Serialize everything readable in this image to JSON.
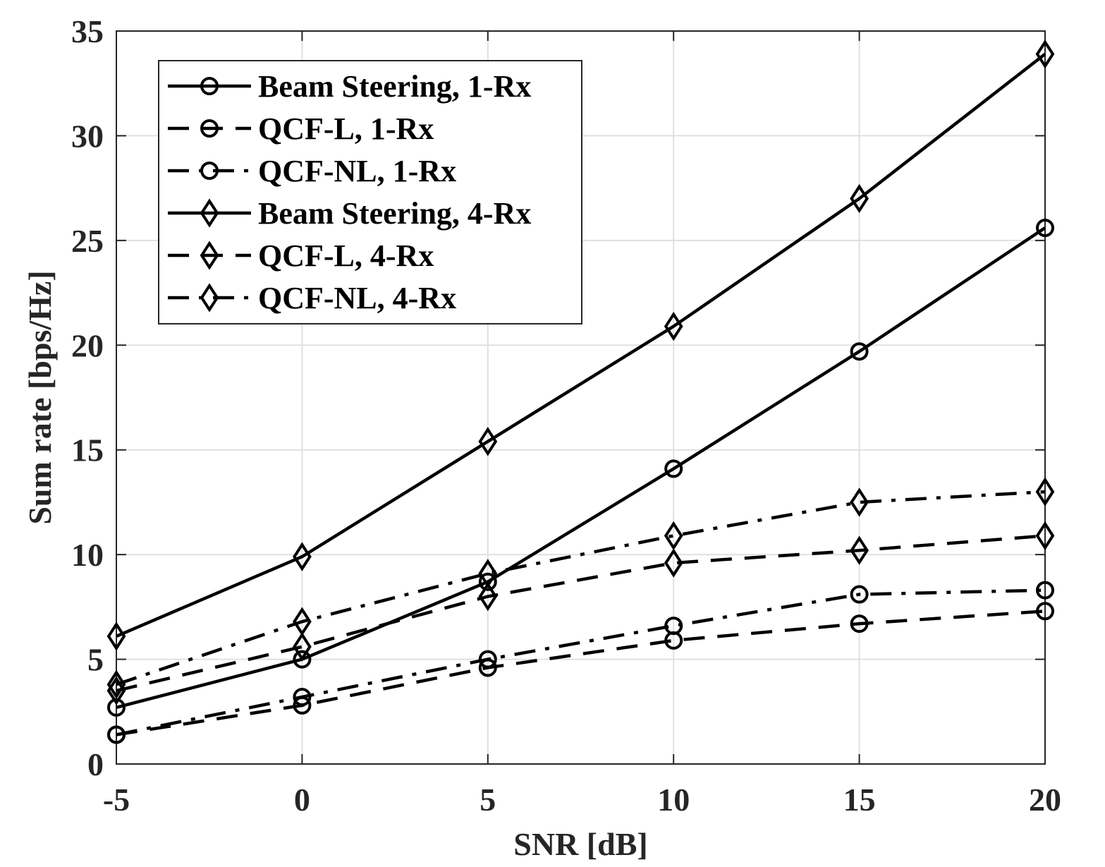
{
  "chart_data": {
    "type": "line",
    "title": "",
    "xlabel": "SNR [dB]",
    "ylabel": "Sum rate [bps/Hz]",
    "x": [
      -5,
      0,
      5,
      10,
      15,
      20
    ],
    "xlim": [
      -5,
      20
    ],
    "ylim": [
      0,
      35
    ],
    "xticks": [
      -5,
      0,
      5,
      10,
      15,
      20
    ],
    "yticks": [
      0,
      5,
      10,
      15,
      20,
      25,
      30,
      35
    ],
    "xtick_labels": [
      "-5",
      "0",
      "5",
      "10",
      "15",
      "20"
    ],
    "ytick_labels": [
      "0",
      "5",
      "10",
      "15",
      "20",
      "25",
      "30",
      "35"
    ],
    "grid": true,
    "legend_position": "top-left",
    "colors": {
      "line": "#000000",
      "grid": "#e0e0e0",
      "text": "#262626"
    },
    "series": [
      {
        "name": "Beam Steering, 1-Rx",
        "style": "solid",
        "marker": "circle",
        "values": [
          2.7,
          5.0,
          8.7,
          14.1,
          19.7,
          25.6
        ]
      },
      {
        "name": "QCF-L, 1-Rx",
        "style": "dashed",
        "marker": "circle",
        "values": [
          1.4,
          2.8,
          4.6,
          5.9,
          6.7,
          7.3
        ]
      },
      {
        "name": "QCF-NL, 1-Rx",
        "style": "dashdot",
        "marker": "circle",
        "values": [
          1.4,
          3.2,
          5.0,
          6.6,
          8.1,
          8.3
        ]
      },
      {
        "name": "Beam Steering, 4-Rx",
        "style": "solid",
        "marker": "diamond",
        "values": [
          6.1,
          9.9,
          15.4,
          20.9,
          27.0,
          33.9
        ]
      },
      {
        "name": "QCF-L, 4-Rx",
        "style": "dashed",
        "marker": "diamond",
        "values": [
          3.5,
          5.6,
          8.0,
          9.6,
          10.2,
          10.9
        ]
      },
      {
        "name": "QCF-NL, 4-Rx",
        "style": "dashdot",
        "marker": "diamond",
        "values": [
          3.8,
          6.8,
          9.1,
          10.9,
          12.5,
          13.0
        ]
      }
    ]
  }
}
